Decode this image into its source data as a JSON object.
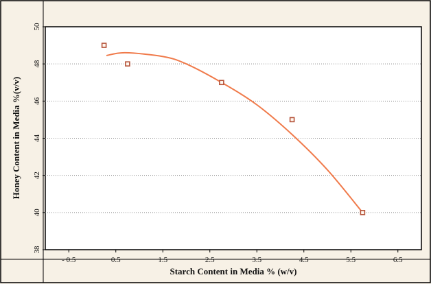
{
  "chart_data": {
    "type": "scatter",
    "title": "",
    "xlabel": "Starch Content in Media % (w/v)",
    "ylabel": "Honey Content in Media %(v/v)",
    "xlim": [
      -1.0,
      7.0
    ],
    "ylim": [
      38,
      50
    ],
    "x_ticks": [
      -0.5,
      0.5,
      1.5,
      2.5,
      3.5,
      4.5,
      5.5,
      6.5
    ],
    "x_tick_labels": [
      "- 0.5",
      "0.5",
      "1.5",
      "2.5",
      "3.5",
      "4.5",
      "5.5",
      "6.5"
    ],
    "y_ticks": [
      38,
      40,
      42,
      44,
      46,
      48,
      50
    ],
    "y_tick_labels": [
      "38",
      "40",
      "42",
      "44",
      "46",
      "48",
      "50"
    ],
    "grid": true,
    "series": [
      {
        "points": [
          {
            "x": 0.25,
            "y": 49
          },
          {
            "x": 0.75,
            "y": 48
          },
          {
            "x": 2.75,
            "y": 47
          },
          {
            "x": 4.25,
            "y": 45
          },
          {
            "x": 5.75,
            "y": 40
          }
        ],
        "color": "#b5533a"
      }
    ],
    "fit_curve": {
      "type": "quadratic",
      "x_range": [
        0.3,
        5.75
      ],
      "points": [
        [
          0.3,
          48.45
        ],
        [
          0.7,
          48.6
        ],
        [
          1.5,
          48.4
        ],
        [
          2.0,
          48.0
        ],
        [
          2.75,
          47.0
        ],
        [
          3.5,
          45.8
        ],
        [
          4.25,
          44.2
        ],
        [
          5.0,
          42.3
        ],
        [
          5.75,
          40.0
        ]
      ],
      "color": "#f07a4a"
    },
    "colors": {
      "page_background": "#f7f1e6",
      "plot_background": "#ffffff",
      "frame": "#000000"
    }
  }
}
